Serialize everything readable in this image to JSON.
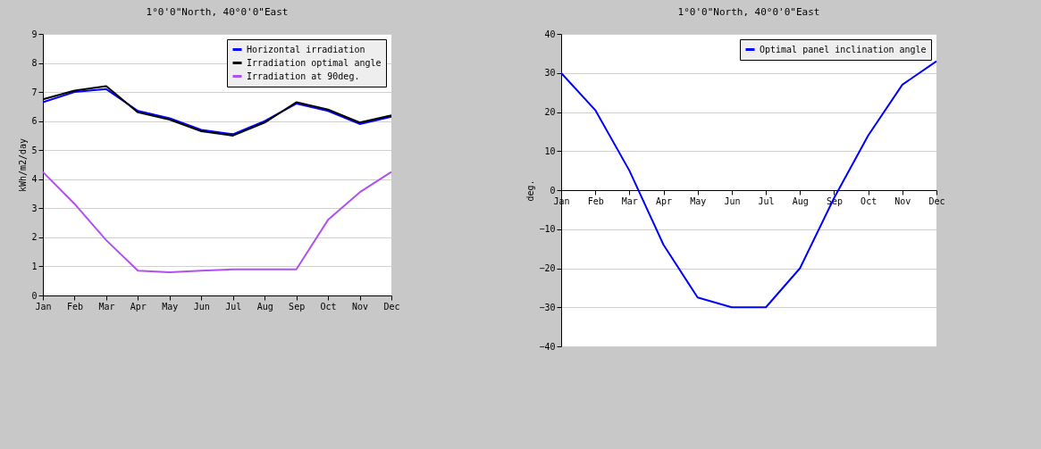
{
  "chart_data": [
    {
      "type": "line",
      "title": "1°0'0\"North, 40°0'0\"East",
      "ylabel": "kWh/m2/day",
      "categories": [
        "Jan",
        "Feb",
        "Mar",
        "Apr",
        "May",
        "Jun",
        "Jul",
        "Aug",
        "Sep",
        "Oct",
        "Nov",
        "Dec"
      ],
      "series": [
        {
          "name": "Horizontal irradiation",
          "color": "#0000ff",
          "values": [
            6.65,
            7.0,
            7.1,
            6.35,
            6.1,
            5.7,
            5.55,
            6.0,
            6.6,
            6.35,
            5.9,
            6.15
          ]
        },
        {
          "name": "Irradiation optimal angle",
          "color": "#000000",
          "values": [
            6.75,
            7.05,
            7.2,
            6.3,
            6.05,
            5.65,
            5.5,
            5.95,
            6.65,
            6.4,
            5.95,
            6.2
          ]
        },
        {
          "name": "Irradiation at 90deg.",
          "color": "#b050f0",
          "values": [
            4.25,
            3.15,
            1.9,
            0.85,
            0.8,
            0.85,
            0.9,
            0.9,
            0.9,
            2.6,
            3.55,
            4.25
          ]
        }
      ],
      "ylim": [
        0,
        9
      ],
      "yticks": [
        0,
        1,
        2,
        3,
        4,
        5,
        6,
        7,
        8,
        9
      ],
      "grid": "y",
      "legend": "top right",
      "marker": "none",
      "line_style": "solid"
    },
    {
      "type": "line",
      "title": "1°0'0\"North, 40°0'0\"East",
      "ylabel": "deg.",
      "categories": [
        "Jan",
        "Feb",
        "Mar",
        "Apr",
        "May",
        "Jun",
        "Jul",
        "Aug",
        "Sep",
        "Oct",
        "Nov",
        "Dec"
      ],
      "series": [
        {
          "name": "Optimal panel inclination angle",
          "color": "#0000ff",
          "values": [
            30,
            20.5,
            5,
            -14,
            -27.5,
            -30,
            -30,
            -20,
            -2,
            14,
            27,
            33
          ]
        }
      ],
      "ylim": [
        -40,
        40
      ],
      "yticks": [
        -40,
        -30,
        -20,
        -10,
        0,
        10,
        20,
        30,
        40
      ],
      "grid": "y",
      "legend": "top right",
      "marker": "none",
      "line_style": "solid"
    }
  ]
}
